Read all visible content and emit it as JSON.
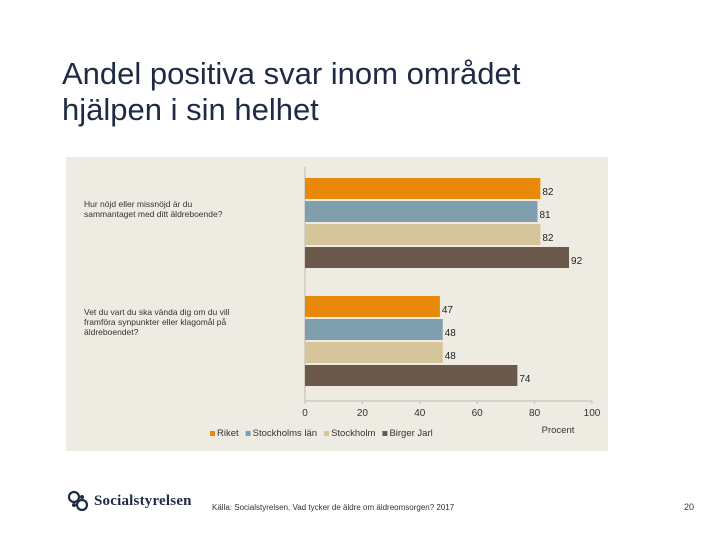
{
  "title": {
    "line1": "Andel positiva svar inom området",
    "line2": "hjälpen i sin helhet"
  },
  "chart_data": {
    "type": "bar",
    "orientation": "horizontal",
    "categories": [
      "Hur nöjd eller missnöjd är du sammantaget med ditt äldreboende?",
      "Vet du vart du ska vända dig om du vill framföra synpunkter eller klagomål på äldreboendet?"
    ],
    "category_lines": [
      [
        "Hur nöjd eller missnöjd är du",
        "sammantaget med ditt äldreboende?"
      ],
      [
        "Vet du vart du ska vända dig om du vill",
        "framföra synpunkter eller klagomål på",
        "äldreboendet?"
      ]
    ],
    "series": [
      {
        "name": "Riket",
        "values": [
          82,
          47
        ],
        "color": "#e8890a"
      },
      {
        "name": "Stockholms län",
        "values": [
          81,
          48
        ],
        "color": "#7f9fae"
      },
      {
        "name": "Stockholm",
        "values": [
          82,
          48
        ],
        "color": "#d6c59b"
      },
      {
        "name": "Birger Jarl",
        "values": [
          92,
          74
        ],
        "color": "#6b5a4c"
      }
    ],
    "xlim": [
      0,
      100
    ],
    "xticks": [
      0,
      20,
      40,
      60,
      80,
      100
    ],
    "xlabel": "Procent",
    "legend_position": "bottom"
  },
  "footer": {
    "logo_text": "Socialstyrelsen",
    "source": "Källa: Socialstyrelsen, Vad tycker de äldre om äldreomsorgen? 2017",
    "page_number": "20"
  }
}
